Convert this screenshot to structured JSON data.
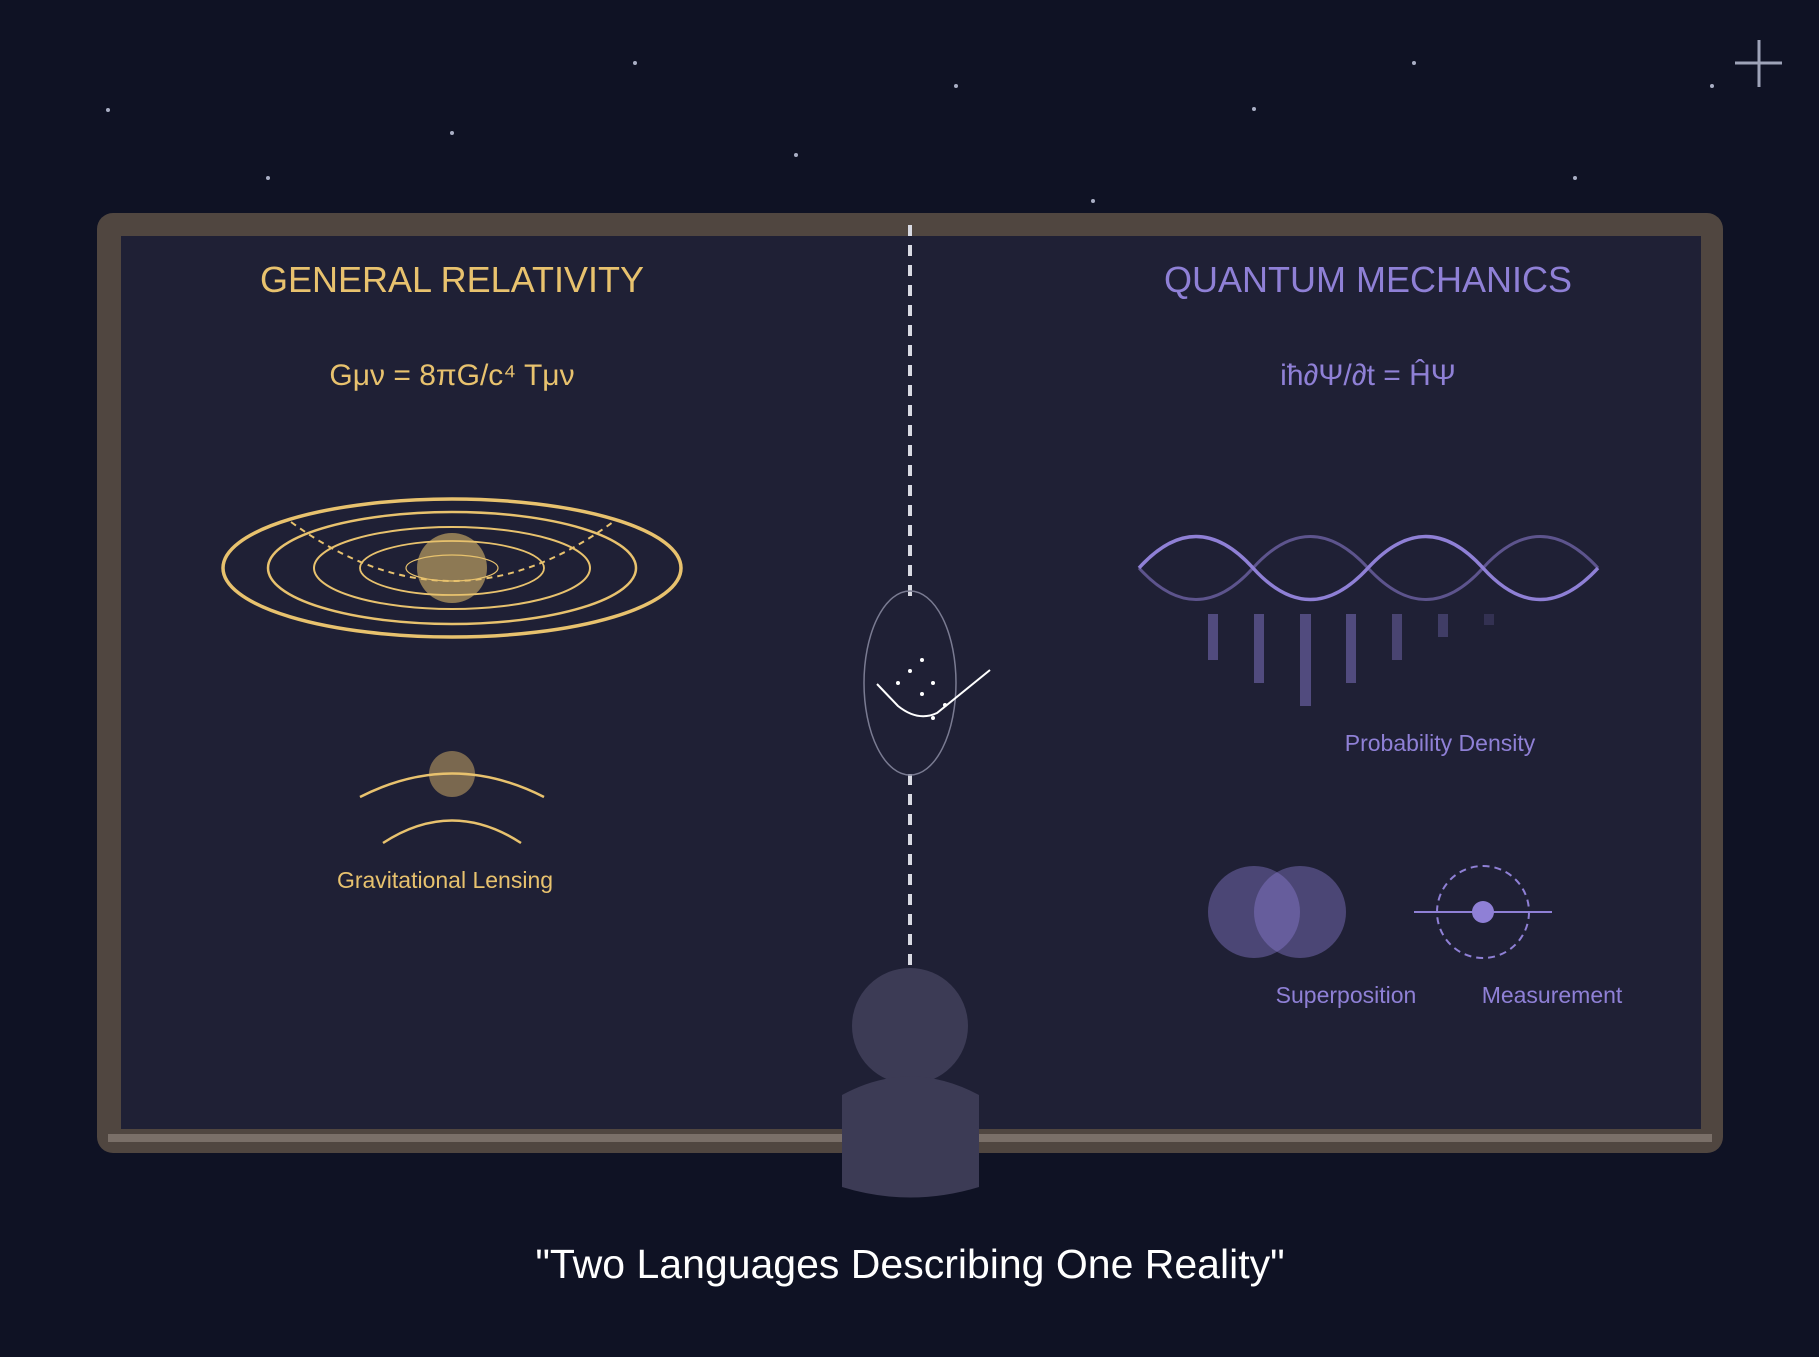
{
  "colors": {
    "background": "#0f1224",
    "board_frame": "#504640",
    "board_surface": "#1f2035",
    "relativity_accent": "#e8c26e",
    "quantum_accent": "#8f80d6",
    "figure": "#3c3b55",
    "caption": "#ffffff"
  },
  "left_panel": {
    "title": "GENERAL RELATIVITY",
    "equation": "Gμν = 8πG/c⁴ Tμν",
    "lensing_label": "Gravitational Lensing"
  },
  "right_panel": {
    "title": "QUANTUM MECHANICS",
    "equation": "iħ∂Ψ/∂t = ĤΨ",
    "density_label": "Probability Density",
    "superposition_label": "Superposition",
    "measurement_label": "Measurement"
  },
  "caption": "\"Two Languages Describing One Reality\"",
  "icons": {
    "corner": "plus-icon",
    "spacetime": "curved-spacetime-icon",
    "lensing": "lensing-icon",
    "wave": "wavefunction-icon",
    "center": "bridge-oval-icon",
    "superposition": "overlapping-circles-icon",
    "measurement": "measured-particle-icon",
    "person": "person-silhouette-icon"
  }
}
